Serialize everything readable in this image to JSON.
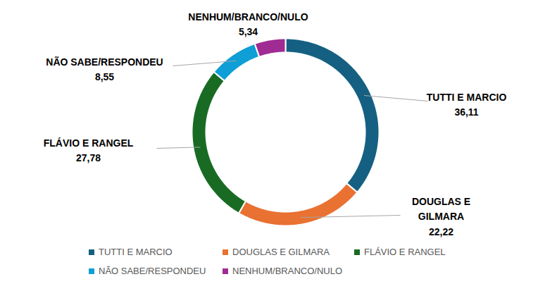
{
  "chart_data": {
    "type": "donut",
    "categories": [
      "TUTTI E MARCIO",
      "DOUGLAS E GILMARA",
      "FLÁVIO E RANGEL",
      "NÃO SABE/RESPONDEU",
      "NENHUM/BRANCO/NULO"
    ],
    "values": [
      36.11,
      22.22,
      27.78,
      8.55,
      5.34
    ],
    "value_labels": [
      "36,11",
      "22,22",
      "27,78",
      "8,55",
      "5,34"
    ],
    "colors": [
      "#156082",
      "#e97132",
      "#196b24",
      "#0f9ed5",
      "#a02b93"
    ],
    "data_labels": true,
    "legend": "bottom"
  }
}
